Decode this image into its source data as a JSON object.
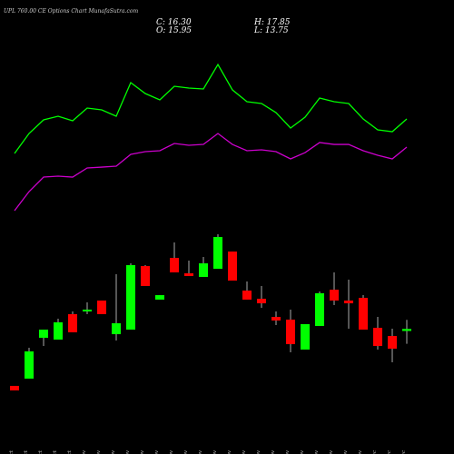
{
  "chart_data": {
    "type": "candlestick",
    "title": "UPL 760.00 CE Options Chart MunafaSutra.com",
    "header": [
      "C: 16.30",
      "O: 15.95",
      "H: 17.85",
      "L: 13.75"
    ],
    "categories": [
      "27 Oct",
      "28 Oct",
      "29 Oct",
      "30 Oct",
      "31 Oct",
      "03 Nov",
      "04 Nov",
      "06 Nov",
      "06 Nov",
      "07 Nov",
      "10 Nov",
      "11 Nov",
      "12 Nov",
      "13 Nov",
      "14 Nov",
      "17 Nov",
      "18 Nov",
      "19 Nov",
      "20 Nov",
      "21 Nov",
      "24 Nov",
      "25 Nov",
      "26 Nov",
      "27 Nov",
      "28 Nov",
      "01 Dec",
      "02 Dec",
      "04 Dec"
    ],
    "open": [
      6.54,
      7.78,
      14.78,
      14.47,
      18.83,
      19.29,
      21.16,
      15.4,
      16.18,
      27.07,
      21.32,
      28.47,
      25.83,
      25.21,
      26.61,
      29.56,
      22.87,
      21.47,
      18.36,
      17.89,
      12.76,
      16.8,
      23.03,
      21.16,
      21.63,
      16.49,
      15.09,
      15.95
    ],
    "close": [
      5.76,
      12.45,
      16.18,
      17.43,
      15.72,
      19.61,
      18.83,
      17.27,
      27.23,
      23.65,
      22.09,
      25.99,
      25.36,
      27.54,
      32.05,
      24.58,
      21.32,
      20.69,
      17.74,
      13.69,
      17.12,
      22.41,
      21.16,
      20.69,
      16.18,
      13.38,
      12.91,
      16.3
    ],
    "high": [
      6.54,
      13.07,
      16.18,
      18.05,
      19.29,
      20.85,
      21.16,
      25.67,
      27.54,
      27.23,
      22.09,
      31.12,
      28.01,
      28.63,
      32.52,
      29.56,
      24.43,
      23.65,
      19.29,
      19.61,
      17.12,
      22.72,
      25.99,
      24.74,
      22.09,
      18.36,
      16.34,
      17.85
    ],
    "low": [
      5.76,
      7.78,
      13.38,
      14.47,
      15.72,
      18.83,
      18.83,
      14.32,
      16.18,
      23.65,
      21.32,
      25.99,
      25.36,
      25.21,
      26.61,
      24.58,
      21.32,
      19.92,
      16.96,
      12.29,
      12.76,
      16.8,
      20.38,
      16.34,
      16.18,
      12.76,
      10.58,
      13.75
    ],
    "up_color": "#00ff00",
    "down_color": "#ff0000",
    "series": [
      {
        "color": "#00ff00",
        "values": [
          46.37,
          49.79,
          52.13,
          52.75,
          51.97,
          54.15,
          53.84,
          52.75,
          58.51,
          56.64,
          55.55,
          57.88,
          57.57,
          57.42,
          61.62,
          57.26,
          55.24,
          54.93,
          53.37,
          50.73,
          52.59,
          55.86,
          55.24,
          54.93,
          52.28,
          50.41,
          50.1,
          52.28
        ]
      },
      {
        "color": "#cc00cc",
        "values": [
          36.57,
          39.83,
          42.32,
          42.48,
          42.32,
          43.88,
          44.03,
          44.19,
          46.21,
          46.68,
          46.84,
          48.08,
          47.77,
          47.92,
          49.79,
          47.92,
          46.84,
          46.99,
          46.68,
          45.44,
          46.52,
          48.24,
          47.92,
          47.92,
          46.84,
          46.06,
          45.44,
          47.46
        ]
      }
    ],
    "ylim": [
      0,
      68
    ]
  }
}
